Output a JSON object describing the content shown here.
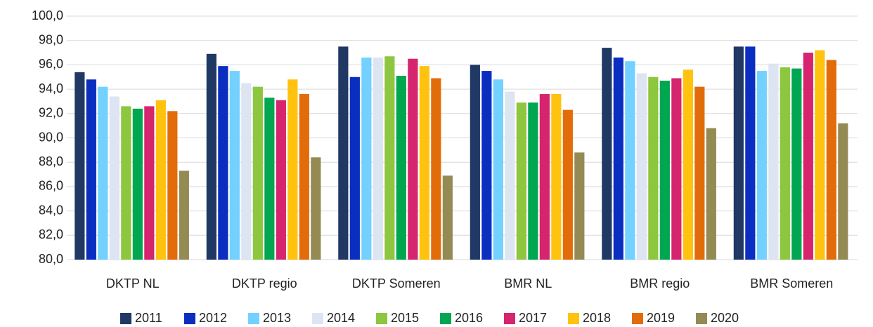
{
  "chart_data": {
    "type": "bar",
    "categories": [
      "DKTP NL",
      "DKTP regio",
      "DKTP Someren",
      "BMR NL",
      "BMR regio",
      "BMR Someren"
    ],
    "series": [
      {
        "name": "2011",
        "color": "#1f3864",
        "values": [
          95.4,
          96.9,
          97.5,
          96.0,
          97.4,
          97.5
        ]
      },
      {
        "name": "2012",
        "color": "#0a2ebf",
        "values": [
          94.8,
          95.9,
          95.0,
          95.5,
          96.6,
          97.5
        ]
      },
      {
        "name": "2013",
        "color": "#73d1ff",
        "values": [
          94.2,
          95.5,
          96.6,
          94.8,
          96.3,
          95.5
        ]
      },
      {
        "name": "2014",
        "color": "#dde4f2",
        "values": [
          93.4,
          94.5,
          96.6,
          93.8,
          95.3,
          96.1
        ]
      },
      {
        "name": "2015",
        "color": "#8dc63f",
        "values": [
          92.6,
          94.2,
          96.7,
          92.9,
          95.0,
          95.8
        ]
      },
      {
        "name": "2016",
        "color": "#00a650",
        "values": [
          92.4,
          93.3,
          95.1,
          92.9,
          94.7,
          95.7
        ]
      },
      {
        "name": "2017",
        "color": "#d6246e",
        "values": [
          92.6,
          93.1,
          96.5,
          93.6,
          94.9,
          97.0
        ]
      },
      {
        "name": "2018",
        "color": "#ffc20e",
        "values": [
          93.1,
          94.8,
          95.9,
          93.6,
          95.6,
          97.2
        ]
      },
      {
        "name": "2019",
        "color": "#e36c0a",
        "values": [
          92.2,
          93.6,
          94.9,
          92.3,
          94.2,
          96.4
        ]
      },
      {
        "name": "2020",
        "color": "#948a54",
        "values": [
          87.3,
          88.4,
          86.9,
          88.8,
          90.8,
          91.2
        ]
      }
    ],
    "ylim": [
      80,
      100
    ],
    "yticks": [
      {
        "value": 80,
        "label": "80,0"
      },
      {
        "value": 82,
        "label": "82,0"
      },
      {
        "value": 84,
        "label": "84,0"
      },
      {
        "value": 86,
        "label": "86,0"
      },
      {
        "value": 88,
        "label": "88,0"
      },
      {
        "value": 90,
        "label": "90,0"
      },
      {
        "value": 92,
        "label": "92,0"
      },
      {
        "value": 94,
        "label": "94,0"
      },
      {
        "value": 96,
        "label": "96,0"
      },
      {
        "value": 98,
        "label": "98,0"
      },
      {
        "value": 100,
        "label": "100,0"
      }
    ],
    "grid": true,
    "legend": "bottom"
  }
}
